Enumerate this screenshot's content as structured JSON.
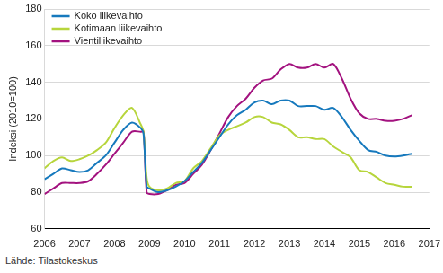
{
  "chart_data": {
    "type": "line",
    "y_label": "Indeksi (2010=100)",
    "annotation": "Lähde: Tilastokeskus",
    "x": [
      2006.0,
      2006.25,
      2006.5,
      2006.75,
      2007.0,
      2007.25,
      2007.5,
      2007.75,
      2008.0,
      2008.25,
      2008.5,
      2008.75,
      2008.83,
      2008.92,
      2009.0,
      2009.25,
      2009.5,
      2009.75,
      2010.0,
      2010.25,
      2010.5,
      2010.75,
      2011.0,
      2011.25,
      2011.5,
      2011.75,
      2012.0,
      2012.25,
      2012.5,
      2012.75,
      2013.0,
      2013.25,
      2013.5,
      2013.75,
      2014.0,
      2014.25,
      2014.5,
      2014.75,
      2015.0,
      2015.25,
      2015.5,
      2015.75,
      2016.0,
      2016.25,
      2016.5
    ],
    "series": [
      {
        "name": "Koko liikevaihto",
        "color": "#1679bd",
        "values": [
          87,
          90,
          93,
          92,
          91,
          92,
          96,
          100,
          107,
          114,
          118,
          115,
          112,
          83,
          82,
          80,
          81,
          83,
          86,
          91,
          96,
          103,
          110,
          117,
          122,
          125,
          129,
          130,
          128,
          130,
          130,
          127,
          127,
          127,
          125,
          126,
          121,
          114,
          108,
          103,
          102,
          100,
          99.5,
          100,
          101
        ]
      },
      {
        "name": "Kotimaan liikevaihto",
        "color": "#b7d53c",
        "values": [
          93,
          97,
          99,
          97,
          98,
          100,
          103,
          107,
          115,
          122,
          126,
          117,
          113,
          88,
          83,
          81,
          82,
          85,
          86,
          93,
          97,
          104,
          111,
          114,
          116,
          118,
          121,
          121,
          118,
          117,
          114,
          110,
          110,
          109,
          109,
          105,
          102,
          99,
          92,
          91,
          88,
          85,
          84,
          83,
          83
        ]
      },
      {
        "name": "Vientiliikevaihto",
        "color": "#a3127f",
        "values": [
          79,
          82,
          85,
          85,
          85,
          86,
          90,
          95,
          101,
          107,
          113,
          113,
          113,
          80,
          79,
          79,
          81,
          84,
          85,
          90,
          95,
          103,
          112,
          121,
          127,
          131,
          137,
          141,
          142,
          147,
          150,
          148,
          148,
          150,
          148,
          150,
          142,
          131,
          123,
          120,
          120,
          119,
          119,
          120,
          122
        ]
      }
    ],
    "xlim": [
      2006,
      2017
    ],
    "xticks": [
      2006,
      2007,
      2008,
      2009,
      2010,
      2011,
      2012,
      2013,
      2014,
      2015,
      2016,
      2017
    ],
    "ylim": [
      60,
      180
    ],
    "yticks": [
      60,
      80,
      100,
      120,
      140,
      160,
      180
    ],
    "grid": true,
    "legend": "upper left"
  }
}
